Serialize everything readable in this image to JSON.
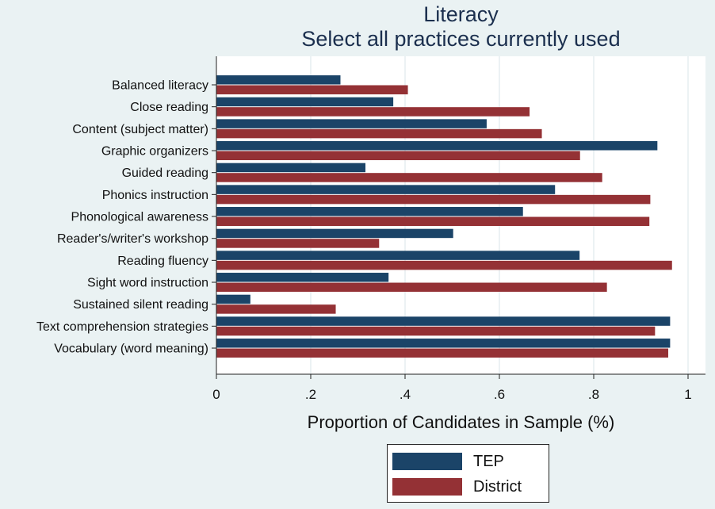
{
  "colors": {
    "background": "#eaf2f3",
    "plot_background": "#ffffff",
    "tep": "#1b4468",
    "district": "#943135",
    "title": "#1b2f4e"
  },
  "chart_data": {
    "type": "bar",
    "orientation": "horizontal",
    "title": "Literacy",
    "subtitle": "Select all practices currently used",
    "xlabel": "Proportion of Candidates in Sample (%)",
    "ylabel": "",
    "xlim": [
      0,
      1.03
    ],
    "xticks": [
      {
        "value": 0,
        "label": "0"
      },
      {
        "value": 0.2,
        "label": ".2"
      },
      {
        "value": 0.4,
        "label": ".4"
      },
      {
        "value": 0.6,
        "label": ".6"
      },
      {
        "value": 0.8,
        "label": ".8"
      },
      {
        "value": 1,
        "label": "1"
      }
    ],
    "grid": "vertical",
    "legend_position": "bottom",
    "categories": [
      "Balanced literacy",
      "Close reading",
      "Content (subject matter)",
      "Graphic organizers",
      "Guided reading",
      "Phonics instruction",
      "Phonological awareness",
      "Reader's/writer's workshop",
      "Reading fluency",
      "Sight word instruction",
      "Sustained silent reading",
      "Text comprehension strategies",
      "Vocabulary (word meaning)"
    ],
    "series": [
      {
        "name": "TEP",
        "color": "#1b4468",
        "values": [
          0.263,
          0.375,
          0.573,
          0.935,
          0.316,
          0.718,
          0.65,
          0.502,
          0.77,
          0.365,
          0.072,
          0.962,
          0.962
        ]
      },
      {
        "name": "District",
        "color": "#943135",
        "values": [
          0.406,
          0.664,
          0.69,
          0.771,
          0.818,
          0.92,
          0.918,
          0.345,
          0.966,
          0.828,
          0.253,
          0.93,
          0.958
        ]
      }
    ]
  }
}
